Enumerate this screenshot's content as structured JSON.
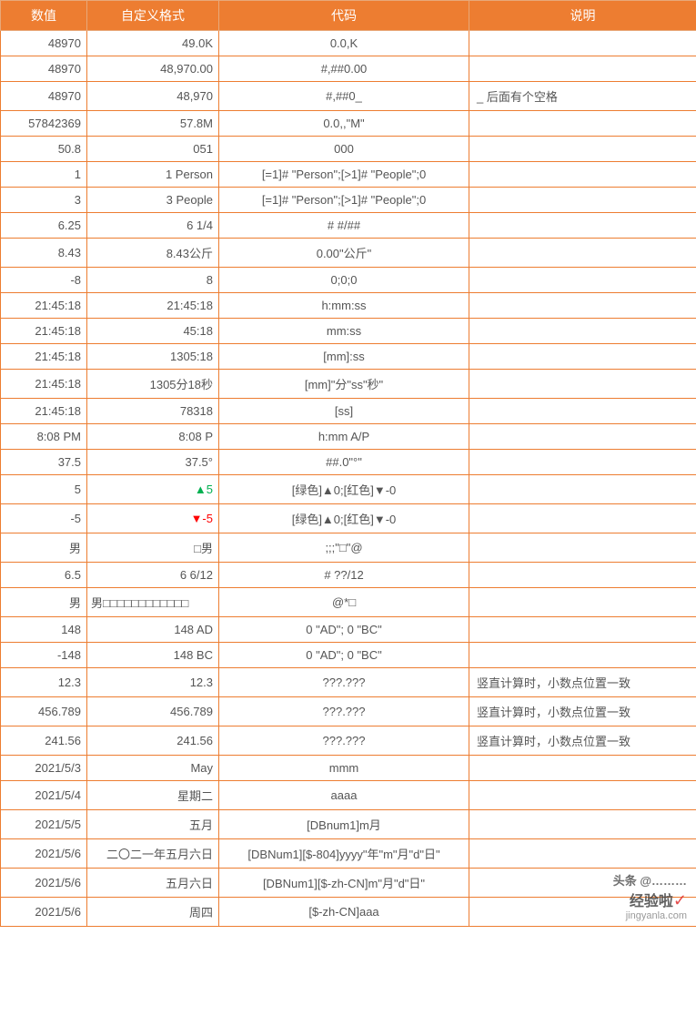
{
  "header": {
    "c1": "数值",
    "c2": "自定义格式",
    "c3": "代码",
    "c4": "说明"
  },
  "rows": [
    {
      "v": "48970",
      "f": "49.0K",
      "c": "0.0,K",
      "n": ""
    },
    {
      "v": "48970",
      "f": "48,970.00",
      "c": "#,##0.00",
      "n": ""
    },
    {
      "v": "48970",
      "f": "48,970",
      "c": "#,##0_",
      "n": "_ 后面有个空格"
    },
    {
      "v": "57842369",
      "f": "57.8M",
      "c": "0.0,,\"M\"",
      "n": ""
    },
    {
      "v": "50.8",
      "f": "051",
      "c": "000",
      "n": ""
    },
    {
      "v": "1",
      "f": "1 Person",
      "c": "[=1]# \"Person\";[>1]# \"People\";0",
      "n": ""
    },
    {
      "v": "3",
      "f": "3 People",
      "c": "[=1]# \"Person\";[>1]# \"People\";0",
      "n": ""
    },
    {
      "v": "6.25",
      "f": "6 1/4",
      "c": "# #/##",
      "n": ""
    },
    {
      "v": "8.43",
      "f": "8.43公斤",
      "c": "0.00\"公斤\"",
      "n": ""
    },
    {
      "v": "-8",
      "f": "8",
      "c": "0;0;0",
      "n": ""
    },
    {
      "v": "21:45:18",
      "f": "21:45:18",
      "c": "h:mm:ss",
      "n": ""
    },
    {
      "v": "21:45:18",
      "f": "45:18",
      "c": "mm:ss",
      "n": ""
    },
    {
      "v": "21:45:18",
      "f": "1305:18",
      "c": "[mm]:ss",
      "n": ""
    },
    {
      "v": "21:45:18",
      "f": "1305分18秒",
      "c": "[mm]\"分\"ss\"秒\"",
      "n": ""
    },
    {
      "v": "21:45:18",
      "f": "78318",
      "c": "[ss]",
      "n": ""
    },
    {
      "v": "8:08 PM",
      "f": "8:08 P",
      "c": "h:mm A/P",
      "n": ""
    },
    {
      "v": "37.5",
      "f": "37.5°",
      "c": "##.0\"°\"",
      "n": ""
    },
    {
      "v": "5",
      "f": "▲5",
      "c": "[绿色]▲0;[红色]▼-0",
      "n": "",
      "fcolor": "green"
    },
    {
      "v": "-5",
      "f": "▼-5",
      "c": "[绿色]▲0;[红色]▼-0",
      "n": "",
      "fcolor": "red"
    },
    {
      "v": "男",
      "f": "□男",
      "c": ";;;\"□\"@",
      "n": ""
    },
    {
      "v": "6.5",
      "f": "6   6/12",
      "c": "# ??/12",
      "n": ""
    },
    {
      "v": "男",
      "f": "男□□□□□□□□□□□□",
      "c": "@*□",
      "n": "",
      "falign": "left"
    },
    {
      "v": "148",
      "f": "148 AD",
      "c": "0 \"AD\"; 0 \"BC\"",
      "n": ""
    },
    {
      "v": "-148",
      "f": "148 BC",
      "c": "0 \"AD\"; 0 \"BC\"",
      "n": ""
    },
    {
      "v": "12.3",
      "f": "12.3",
      "c": "???.???",
      "n": "竖直计算时，小数点位置一致"
    },
    {
      "v": "456.789",
      "f": "456.789",
      "c": "???.???",
      "n": "竖直计算时，小数点位置一致"
    },
    {
      "v": "241.56",
      "f": "241.56",
      "c": "???.???",
      "n": "竖直计算时，小数点位置一致"
    },
    {
      "v": "2021/5/3",
      "f": "May",
      "c": "mmm",
      "n": ""
    },
    {
      "v": "2021/5/4",
      "f": "星期二",
      "c": "aaaa",
      "n": ""
    },
    {
      "v": "2021/5/5",
      "f": "五月",
      "c": "[DBnum1]m月",
      "n": ""
    },
    {
      "v": "2021/5/6",
      "f": "二〇二一年五月六日",
      "c": "[DBNum1][$-804]yyyy\"年\"m\"月\"d\"日\"",
      "n": ""
    },
    {
      "v": "2021/5/6",
      "f": "五月六日",
      "c": "[DBNum1][$-zh-CN]m\"月\"d\"日\"",
      "n": ""
    },
    {
      "v": "2021/5/6",
      "f": "周四",
      "c": "[$-zh-CN]aaa",
      "n": ""
    }
  ],
  "watermark": {
    "l1": "头条 @………",
    "l2": "经验啦",
    "l3": "jingyanla.com"
  },
  "colors": {
    "header_bg": "#ed7d31",
    "header_fg": "#ffffff",
    "border": "#ed7d31",
    "text": "#555555",
    "green": "#00b050",
    "red": "#ff0000"
  }
}
